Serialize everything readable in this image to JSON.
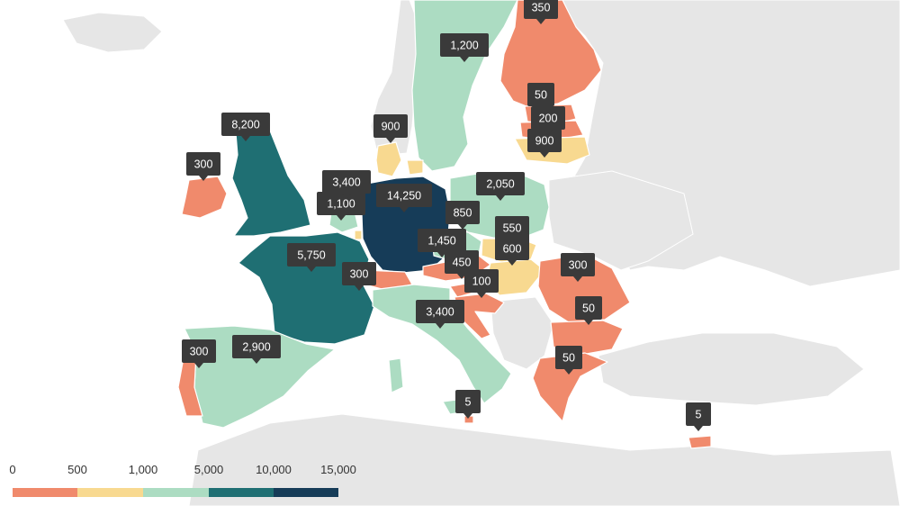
{
  "colors": {
    "sea": "#ffffff",
    "land_other": "#e6e6e6",
    "land_border": "#ffffff",
    "pin_bg": "#3a3a3a",
    "pin_text": "#ffffff",
    "bin_0_500": "#f08a6c",
    "bin_500_1000": "#f8d990",
    "bin_1000_5000": "#acdcc2",
    "bin_5000_10000": "#1f6f73",
    "bin_10000_15000": "#163c58"
  },
  "map_data": {
    "regions": [
      {
        "name": "Germany",
        "value": "14,250",
        "bin": "bin_10000_15000"
      },
      {
        "name": "United Kingdom",
        "value": "8,200",
        "bin": "bin_5000_10000"
      },
      {
        "name": "France",
        "value": "5,750",
        "bin": "bin_5000_10000"
      },
      {
        "name": "Belgium",
        "value": "1,100",
        "bin": "bin_1000_5000"
      },
      {
        "name": "Netherlands",
        "value": "3,400",
        "bin": "bin_1000_5000"
      },
      {
        "name": "Italy",
        "value": "3,400",
        "bin": "bin_1000_5000"
      },
      {
        "name": "Spain",
        "value": "2,900",
        "bin": "bin_1000_5000"
      },
      {
        "name": "Poland",
        "value": "2,050",
        "bin": "bin_1000_5000"
      },
      {
        "name": "Czechia",
        "value": "1,450",
        "bin": "bin_1000_5000"
      },
      {
        "name": "Sweden",
        "value": "1,200",
        "bin": "bin_1000_5000"
      },
      {
        "name": "Austria",
        "value": "450",
        "bin": "bin_0_500"
      },
      {
        "name": "Denmark",
        "value": "900",
        "bin": "bin_500_1000"
      },
      {
        "name": "Lithuania",
        "value": "900",
        "bin": "bin_500_1000"
      },
      {
        "name": "Slovakia",
        "value": "550",
        "bin": "bin_500_1000"
      },
      {
        "name": "Hungary",
        "value": "600",
        "bin": "bin_500_1000"
      },
      {
        "name": "Luxembourg",
        "value": "850",
        "bin": "bin_500_1000"
      },
      {
        "name": "Finland",
        "value": "350",
        "bin": "bin_0_500"
      },
      {
        "name": "Estonia",
        "value": "50",
        "bin": "bin_0_500"
      },
      {
        "name": "Latvia",
        "value": "200",
        "bin": "bin_0_500"
      },
      {
        "name": "Ireland",
        "value": "300",
        "bin": "bin_0_500"
      },
      {
        "name": "Switzerland",
        "value": "300",
        "bin": "bin_0_500"
      },
      {
        "name": "Portugal",
        "value": "300",
        "bin": "bin_0_500"
      },
      {
        "name": "Romania",
        "value": "300",
        "bin": "bin_0_500"
      },
      {
        "name": "Bulgaria",
        "value": "50",
        "bin": "bin_0_500"
      },
      {
        "name": "Greece",
        "value": "50",
        "bin": "bin_0_500"
      },
      {
        "name": "Slovenia",
        "value": "100",
        "bin": "bin_0_500"
      },
      {
        "name": "Croatia",
        "value": "",
        "bin": "bin_0_500"
      },
      {
        "name": "Malta",
        "value": "5",
        "bin": "bin_0_500"
      },
      {
        "name": "Cyprus",
        "value": "5",
        "bin": "bin_0_500"
      }
    ]
  },
  "legend": {
    "labels": [
      "0",
      "500",
      "1,000",
      "5,000",
      "10,000",
      "15,000"
    ],
    "bins": [
      "bin_0_500",
      "bin_500_1000",
      "bin_1000_5000",
      "bin_5000_10000",
      "bin_10000_15000"
    ]
  }
}
